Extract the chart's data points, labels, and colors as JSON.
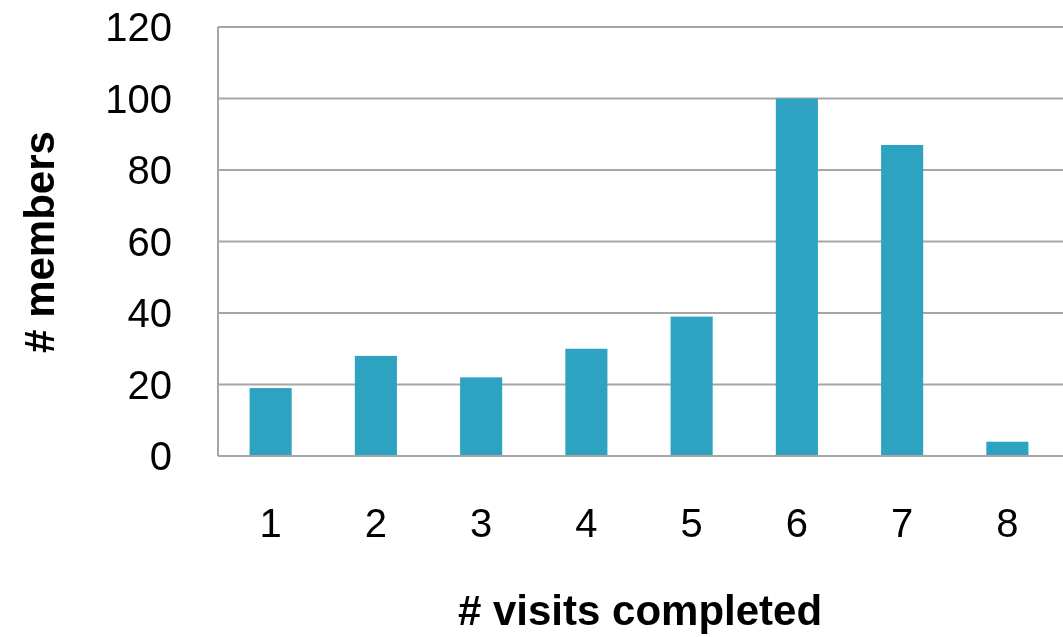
{
  "chart_data": {
    "type": "bar",
    "xlabel": "# visits completed",
    "ylabel": "# members",
    "categories": [
      "1",
      "2",
      "3",
      "4",
      "5",
      "6",
      "7",
      "8"
    ],
    "values": [
      19,
      28,
      22,
      30,
      39,
      100,
      87,
      4
    ],
    "color": "#2ea3c1",
    "ylim": [
      0,
      120
    ],
    "yticks": [
      0,
      20,
      40,
      60,
      80,
      100,
      120
    ],
    "grid": "y"
  }
}
